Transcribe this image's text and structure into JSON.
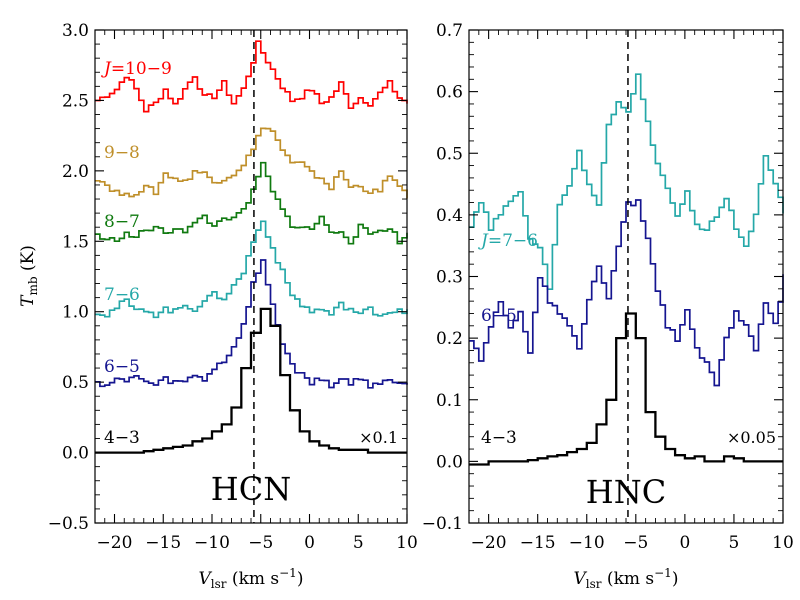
{
  "chart_data": [
    {
      "type": "line",
      "panel": "left",
      "molecule_label": "HCN",
      "xlabel": "V_lsr (km s^-1)",
      "xlabel_parts": {
        "main": "V",
        "sub": "lsr",
        "unit_pre": " (km s",
        "unit_sup": "−1",
        "unit_post": ")"
      },
      "ylabel": "T_mb (K)",
      "ylabel_parts": {
        "main": "T",
        "sub": "mb",
        "unit": " (K)"
      },
      "xlim": [
        -22,
        10
      ],
      "ylim": [
        -0.5,
        3.0
      ],
      "xticks": [
        -20,
        -15,
        -10,
        -5,
        0,
        5,
        10
      ],
      "xtick_labels": [
        "−20",
        "−15",
        "−10",
        "−5",
        "0",
        "5",
        "10"
      ],
      "yticks": [
        -0.5,
        0.0,
        0.5,
        1.0,
        1.5,
        2.0,
        2.5,
        3.0
      ],
      "ytick_labels": [
        "−0.5",
        "0.0",
        "0.5",
        "1.0",
        "1.5",
        "2.0",
        "2.5",
        "3.0"
      ],
      "vline_x": -5.7,
      "scale_note": "×0.1",
      "series": [
        {
          "name": "J=10−9",
          "label_italic": "J",
          "label_rest": "=10−9",
          "color": "#ff0000",
          "step": 0.5,
          "x": [
            -22,
            -20,
            -19,
            -18,
            -17,
            -16,
            -15,
            -14,
            -13,
            -12,
            -11,
            -10,
            -9,
            -8,
            -7,
            -6,
            -5.5,
            -5,
            -4,
            -3,
            -2,
            -1,
            0,
            1,
            2,
            3,
            4,
            5,
            6,
            7,
            8,
            9,
            10
          ],
          "y": [
            2.5,
            2.58,
            2.68,
            2.58,
            2.43,
            2.48,
            2.58,
            2.47,
            2.58,
            2.68,
            2.52,
            2.53,
            2.62,
            2.48,
            2.58,
            2.78,
            2.9,
            2.84,
            2.72,
            2.6,
            2.5,
            2.53,
            2.58,
            2.48,
            2.52,
            2.62,
            2.46,
            2.52,
            2.48,
            2.55,
            2.62,
            2.52,
            2.48
          ]
        },
        {
          "name": "9−8",
          "label_italic": "",
          "label_rest": "9−8",
          "color": "#bf8f2a",
          "step": 0.5,
          "x": [
            -22,
            -21,
            -20,
            -19,
            -18,
            -17,
            -16,
            -15,
            -14,
            -13,
            -12,
            -11,
            -10,
            -9,
            -8,
            -7,
            -6,
            -5,
            -4,
            -3,
            -2,
            -1,
            0,
            1,
            2,
            3,
            4,
            5,
            6,
            7,
            8,
            9,
            10
          ],
          "y": [
            1.95,
            1.9,
            1.85,
            1.82,
            1.85,
            1.88,
            1.85,
            1.98,
            1.95,
            1.92,
            2.0,
            1.98,
            1.92,
            1.95,
            1.98,
            2.05,
            2.15,
            2.32,
            2.28,
            2.15,
            2.05,
            2.05,
            1.98,
            1.95,
            1.88,
            2.0,
            1.88,
            1.9,
            1.85,
            1.85,
            1.98,
            1.88,
            1.8
          ]
        },
        {
          "name": "8−7",
          "label_italic": "",
          "label_rest": "8−7",
          "color": "#107a10",
          "step": 0.5,
          "x": [
            -22,
            -21,
            -20,
            -19,
            -18,
            -17,
            -16,
            -15,
            -14,
            -13,
            -12,
            -11,
            -10,
            -9,
            -8,
            -7,
            -6,
            -5,
            -4,
            -3,
            -2,
            -1,
            0,
            1,
            2,
            3,
            4,
            5,
            6,
            7,
            8,
            9,
            10
          ],
          "y": [
            1.55,
            1.5,
            1.52,
            1.55,
            1.53,
            1.58,
            1.6,
            1.55,
            1.6,
            1.58,
            1.62,
            1.68,
            1.6,
            1.68,
            1.65,
            1.72,
            1.85,
            2.05,
            1.85,
            1.72,
            1.62,
            1.6,
            1.58,
            1.68,
            1.55,
            1.58,
            1.5,
            1.6,
            1.55,
            1.58,
            1.6,
            1.5,
            1.55
          ]
        },
        {
          "name": "7−6",
          "label_italic": "",
          "label_rest": "7−6",
          "color": "#25a8a8",
          "step": 0.5,
          "x": [
            -22,
            -21,
            -20,
            -19,
            -18,
            -17,
            -16,
            -15,
            -14,
            -13,
            -12,
            -11,
            -10,
            -9,
            -8,
            -7,
            -6,
            -5,
            -4,
            -3,
            -2,
            -1,
            0,
            1,
            2,
            3,
            4,
            5,
            6,
            7,
            8,
            9,
            10
          ],
          "y": [
            1.0,
            0.98,
            1.03,
            1.08,
            1.0,
            1.02,
            0.98,
            1.02,
            1.0,
            1.05,
            1.02,
            1.08,
            1.12,
            1.1,
            1.18,
            1.28,
            1.5,
            1.65,
            1.45,
            1.28,
            1.12,
            1.05,
            1.0,
            1.02,
            0.98,
            1.05,
            1.02,
            0.98,
            1.02,
            0.98,
            1.0,
            1.02,
            1.0
          ]
        },
        {
          "name": "6−5",
          "label_italic": "",
          "label_rest": "6−5",
          "color": "#151590",
          "step": 0.5,
          "x": [
            -22,
            -21,
            -20,
            -19,
            -18,
            -17,
            -16,
            -15,
            -14,
            -13,
            -12,
            -11,
            -10,
            -9,
            -8,
            -7,
            -6,
            -5,
            -4,
            -3,
            -2,
            -1,
            0,
            1,
            2,
            3,
            4,
            5,
            6,
            7,
            8,
            9,
            10
          ],
          "y": [
            0.5,
            0.48,
            0.52,
            0.5,
            0.55,
            0.5,
            0.48,
            0.52,
            0.5,
            0.5,
            0.55,
            0.52,
            0.6,
            0.65,
            0.75,
            0.9,
            1.2,
            1.35,
            1.05,
            0.78,
            0.62,
            0.55,
            0.5,
            0.52,
            0.48,
            0.52,
            0.5,
            0.52,
            0.48,
            0.5,
            0.52,
            0.48,
            0.5
          ]
        },
        {
          "name": "4−3",
          "label_italic": "",
          "label_rest": "4−3",
          "color": "#000000",
          "step": 1.0,
          "x": [
            -22,
            -21,
            -20,
            -19,
            -18,
            -17,
            -16,
            -15,
            -14,
            -13,
            -12,
            -11,
            -10,
            -9,
            -8,
            -7,
            -6,
            -5,
            -4,
            -3,
            -2,
            -1,
            0,
            1,
            2,
            3,
            4,
            5,
            6,
            7,
            8,
            9,
            10
          ],
          "y": [
            0.0,
            0.0,
            0.0,
            0.0,
            0.0,
            0.01,
            0.02,
            0.03,
            0.04,
            0.05,
            0.08,
            0.1,
            0.15,
            0.2,
            0.32,
            0.6,
            0.85,
            1.02,
            0.9,
            0.55,
            0.3,
            0.15,
            0.08,
            0.05,
            0.03,
            0.02,
            0.02,
            0.02,
            0.0,
            0.0,
            0.0,
            0.0,
            0.0
          ]
        }
      ]
    },
    {
      "type": "line",
      "panel": "right",
      "molecule_label": "HNC",
      "xlabel": "V_lsr (km s^-1)",
      "xlabel_parts": {
        "main": "V",
        "sub": "lsr",
        "unit_pre": " (km s",
        "unit_sup": "−1",
        "unit_post": ")"
      },
      "xlim": [
        -22,
        10
      ],
      "ylim": [
        -0.1,
        0.7
      ],
      "xticks": [
        -20,
        -15,
        -10,
        -5,
        0,
        5,
        10
      ],
      "xtick_labels": [
        "−20",
        "−15",
        "−10",
        "−5",
        "0",
        "5",
        "10"
      ],
      "yticks": [
        -0.1,
        0.0,
        0.1,
        0.2,
        0.3,
        0.4,
        0.5,
        0.6,
        0.7
      ],
      "ytick_labels": [
        "−0.1",
        "0.0",
        "0.1",
        "0.2",
        "0.3",
        "0.4",
        "0.5",
        "0.6",
        "0.7"
      ],
      "vline_x": -5.8,
      "scale_note": "×0.05",
      "series": [
        {
          "name": "J=7−6",
          "label_italic": "J",
          "label_rest": "=7−6",
          "color": "#25a8a8",
          "step": 0.5,
          "x": [
            -22,
            -21,
            -20,
            -19,
            -18,
            -17,
            -16,
            -15,
            -14,
            -13,
            -12,
            -11,
            -10,
            -9,
            -8,
            -7,
            -6,
            -5,
            -4,
            -3,
            -2,
            -1,
            0,
            1,
            2,
            3,
            4,
            5,
            6,
            7,
            8,
            9,
            10
          ],
          "y": [
            0.38,
            0.42,
            0.38,
            0.4,
            0.42,
            0.44,
            0.36,
            0.35,
            0.28,
            0.42,
            0.45,
            0.5,
            0.45,
            0.42,
            0.55,
            0.58,
            0.57,
            0.63,
            0.55,
            0.48,
            0.44,
            0.4,
            0.44,
            0.38,
            0.38,
            0.4,
            0.43,
            0.38,
            0.35,
            0.4,
            0.5,
            0.45,
            0.4
          ]
        },
        {
          "name": "6−5",
          "label_italic": "",
          "label_rest": "6−5",
          "color": "#151590",
          "step": 0.5,
          "x": [
            -22,
            -21,
            -20,
            -19,
            -18,
            -17,
            -16,
            -15,
            -14,
            -13,
            -12,
            -11,
            -10,
            -9,
            -8,
            -7,
            -6,
            -5,
            -4,
            -3,
            -2,
            -1,
            0,
            1,
            2,
            3,
            4,
            5,
            6,
            7,
            8,
            9,
            10
          ],
          "y": [
            0.2,
            0.16,
            0.22,
            0.26,
            0.22,
            0.24,
            0.18,
            0.3,
            0.26,
            0.24,
            0.22,
            0.18,
            0.26,
            0.32,
            0.26,
            0.35,
            0.42,
            0.42,
            0.36,
            0.28,
            0.22,
            0.2,
            0.25,
            0.18,
            0.16,
            0.12,
            0.2,
            0.24,
            0.22,
            0.18,
            0.26,
            0.22,
            0.3
          ]
        },
        {
          "name": "4−3",
          "label_italic": "",
          "label_rest": "4−3",
          "color": "#000000",
          "step": 1.0,
          "x": [
            -22,
            -21,
            -20,
            -19,
            -18,
            -17,
            -16,
            -15,
            -14,
            -13,
            -12,
            -11,
            -10,
            -9,
            -8,
            -7,
            -6,
            -5,
            -4,
            -3,
            -2,
            -1,
            0,
            1,
            2,
            3,
            4,
            5,
            6,
            7,
            8,
            9,
            10
          ],
          "y": [
            -0.005,
            -0.005,
            0.0,
            0.0,
            0.0,
            0.0,
            0.002,
            0.005,
            0.008,
            0.01,
            0.015,
            0.02,
            0.03,
            0.06,
            0.1,
            0.2,
            0.24,
            0.2,
            0.08,
            0.04,
            0.02,
            0.01,
            0.005,
            0.008,
            0.0,
            0.0,
            0.008,
            0.005,
            0.0,
            0.0,
            0.0,
            0.0,
            0.0
          ]
        }
      ]
    }
  ]
}
